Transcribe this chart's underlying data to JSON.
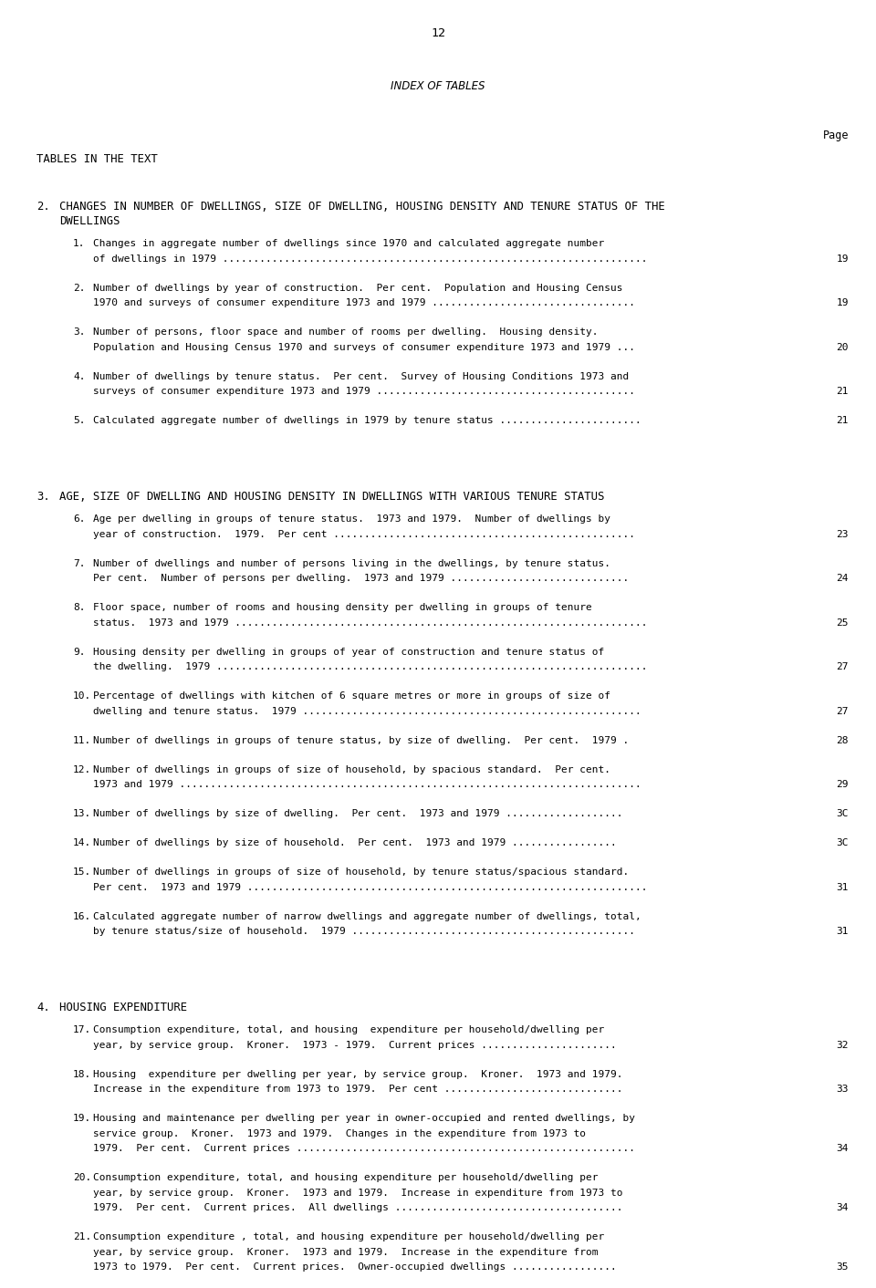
{
  "page_number": "12",
  "header_italic": "INDEX OF TABLES",
  "page_label": "Page",
  "section_header": "TABLES IN THE TEXT",
  "background_color": "#ffffff",
  "sections": [
    {
      "number": "2.",
      "title_lines": [
        "CHANGES IN NUMBER OF DWELLINGS, SIZE OF DWELLING, HOUSING DENSITY AND TENURE STATUS OF THE",
        "DWELLINGS"
      ],
      "items": [
        {
          "num": "1.",
          "lines": [
            "Changes in aggregate number of dwellings since 1970 and calculated aggregate number",
            "of dwellings in 1979 ....................................................................."
          ],
          "page": "19"
        },
        {
          "num": "2.",
          "lines": [
            "Number of dwellings by year of construction.  Per cent.  Population and Housing Census",
            "1970 and surveys of consumer expenditure 1973 and 1979 ................................."
          ],
          "page": "19"
        },
        {
          "num": "3.",
          "lines": [
            "Number of persons, floor space and number of rooms per dwelling.  Housing density.",
            "Population and Housing Census 1970 and surveys of consumer expenditure 1973 and 1979 ..."
          ],
          "page": "20"
        },
        {
          "num": "4.",
          "lines": [
            "Number of dwellings by tenure status.  Per cent.  Survey of Housing Conditions 1973 and",
            "surveys of consumer expenditure 1973 and 1979 .........................................."
          ],
          "page": "21"
        },
        {
          "num": "5.",
          "lines": [
            "Calculated aggregate number of dwellings in 1979 by tenure status ......................."
          ],
          "page": "21"
        }
      ]
    },
    {
      "number": "3.",
      "title_lines": [
        "AGE, SIZE OF DWELLING AND HOUSING DENSITY IN DWELLINGS WITH VARIOUS TENURE STATUS"
      ],
      "items": [
        {
          "num": "6.",
          "lines": [
            "Age per dwelling in groups of tenure status.  1973 and 1979.  Number of dwellings by",
            "year of construction.  1979.  Per cent ................................................."
          ],
          "page": "23"
        },
        {
          "num": "7.",
          "lines": [
            "Number of dwellings and number of persons living in the dwellings, by tenure status.",
            "Per cent.  Number of persons per dwelling.  1973 and 1979 ............................."
          ],
          "page": "24"
        },
        {
          "num": "8.",
          "lines": [
            "Floor space, number of rooms and housing density per dwelling in groups of tenure",
            "status.  1973 and 1979 ..................................................................."
          ],
          "page": "25"
        },
        {
          "num": "9.",
          "lines": [
            "Housing density per dwelling in groups of year of construction and tenure status of",
            "the dwelling.  1979 ......................................................................"
          ],
          "page": "27"
        },
        {
          "num": "10.",
          "lines": [
            "Percentage of dwellings with kitchen of 6 square metres or more in groups of size of",
            "dwelling and tenure status.  1979 ......................................................."
          ],
          "page": "27"
        },
        {
          "num": "11.",
          "lines": [
            "Number of dwellings in groups of tenure status, by size of dwelling.  Per cent.  1979 ."
          ],
          "page": "28"
        },
        {
          "num": "12.",
          "lines": [
            "Number of dwellings in groups of size of household, by spacious standard.  Per cent.",
            "1973 and 1979 ..........................................................................."
          ],
          "page": "29"
        },
        {
          "num": "13.",
          "lines": [
            "Number of dwellings by size of dwelling.  Per cent.  1973 and 1979 ..................."
          ],
          "page": "3C"
        },
        {
          "num": "14.",
          "lines": [
            "Number of dwellings by size of household.  Per cent.  1973 and 1979 ................."
          ],
          "page": "3C"
        },
        {
          "num": "15.",
          "lines": [
            "Number of dwellings in groups of size of household, by tenure status/spacious standard.",
            "Per cent.  1973 and 1979 ................................................................."
          ],
          "page": "31"
        },
        {
          "num": "16.",
          "lines": [
            "Calculated aggregate number of narrow dwellings and aggregate number of dwellings, total,",
            "by tenure status/size of household.  1979 .............................................."
          ],
          "page": "31"
        }
      ]
    },
    {
      "number": "4.",
      "title_lines": [
        "HOUSING EXPENDITURE"
      ],
      "items": [
        {
          "num": "17.",
          "lines": [
            "Consumption expenditure, total, and housing  expenditure per household/dwelling per",
            "year, by service group.  Kroner.  1973 - 1979.  Current prices ......................"
          ],
          "page": "32"
        },
        {
          "num": "18.",
          "lines": [
            "Housing  expenditure per dwelling per year, by service group.  Kroner.  1973 and 1979.",
            "Increase in the expenditure from 1973 to 1979.  Per cent ............................."
          ],
          "page": "33"
        },
        {
          "num": "19.",
          "lines": [
            "Housing and maintenance per dwelling per year in owner-occupied and rented dwellings, by",
            "service group.  Kroner.  1973 and 1979.  Changes in the expenditure from 1973 to",
            "1979.  Per cent.  Current prices ......................................................."
          ],
          "page": "34"
        },
        {
          "num": "20.",
          "lines": [
            "Consumption expenditure, total, and housing expenditure per household/dwelling per",
            "year, by service group.  Kroner.  1973 and 1979.  Increase in expenditure from 1973 to",
            "1979.  Per cent.  Current prices.  All dwellings ....................................."
          ],
          "page": "34"
        },
        {
          "num": "21.",
          "lines": [
            "Consumption expenditure , total, and housing expenditure per household/dwelling per",
            "year, by service group.  Kroner.  1973 and 1979.  Increase in the expenditure from",
            "1973 to 1979.  Per cent.  Current prices.  Owner-occupied dwellings ................."
          ],
          "page": "35"
        }
      ]
    }
  ]
}
